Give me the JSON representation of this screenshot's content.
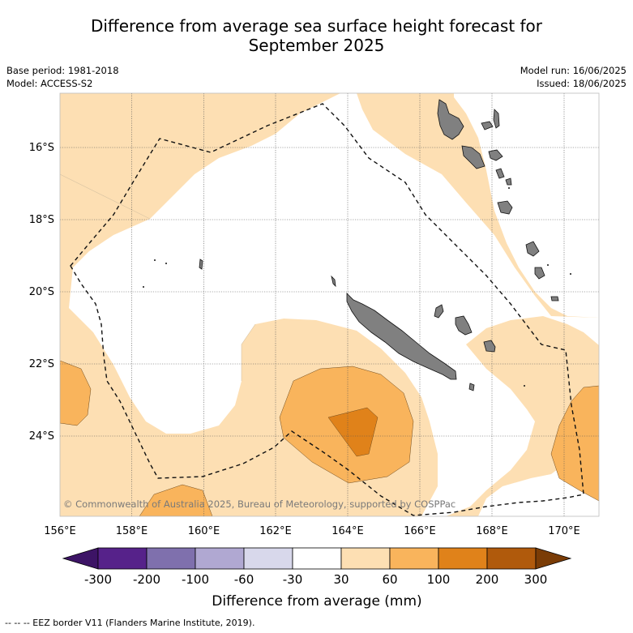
{
  "title_line1": "Difference from average sea surface height forecast for",
  "title_line2": "September 2025",
  "base_period": "Base period: 1981-2018",
  "model": "Model: ACCESS-S2",
  "model_run": "Model run: 16/06/2025",
  "issued": "Issued: 18/06/2025",
  "copyright": "© Commonwealth of Australia 2025, Bureau of Meteorology, supported by COSPPac",
  "lat_labels": [
    "16°S",
    "18°S",
    "20°S",
    "22°S",
    "24°S"
  ],
  "lon_labels": [
    "156°E",
    "158°E",
    "160°E",
    "162°E",
    "164°E",
    "166°E",
    "168°E",
    "170°E"
  ],
  "colorbar": {
    "title": "Difference from average (mm)",
    "tick_labels": [
      "-300",
      "-200",
      "-100",
      "-60",
      "-30",
      "30",
      "60",
      "100",
      "200",
      "300"
    ],
    "colors": [
      "#3d1466",
      "#56228a",
      "#7f70ad",
      "#b0a8d2",
      "#d8d8eb",
      "#ffffff",
      "#fddfb3",
      "#f9b45c",
      "#e0821a",
      "#b05a0c",
      "#7a3c06"
    ]
  },
  "legend_footnote": "--  --  -- EEZ border V11 (Flanders Marine Institute, 2019)."
}
